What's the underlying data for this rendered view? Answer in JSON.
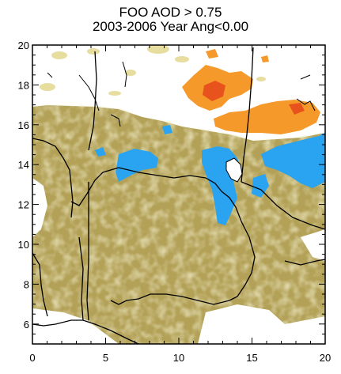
{
  "title": {
    "line1": "FOO AOD > 0.75",
    "line2": "2003-2006 Year Ang<0.00"
  },
  "map": {
    "x_ticks": [
      "0",
      "5",
      "10",
      "15",
      "20"
    ],
    "y_ticks": [
      "6",
      "8",
      "10",
      "12",
      "14",
      "16",
      "18",
      "20"
    ],
    "x_range": [
      0,
      20
    ],
    "y_range": [
      5,
      20
    ],
    "colors": {
      "low_frequency": "#b3a157",
      "light_frequency": "#e6dd9e",
      "blue_patches": "#2aa4f0",
      "orange_patches": "#f59a2a",
      "dark_orange_patches": "#e8521c",
      "coastline": "#000000"
    }
  }
}
